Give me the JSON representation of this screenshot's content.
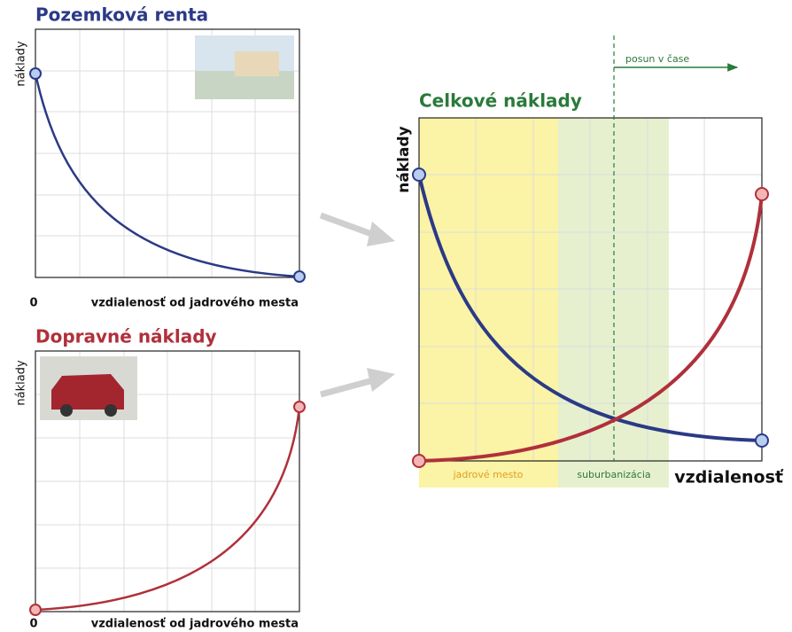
{
  "panels": [
    {
      "title": "Pozemková renta",
      "y_label": "náklady",
      "origin": "0",
      "x_label": "vzdialenosť od jadrového mesta"
    },
    {
      "title": "Dopravné náklady",
      "y_label": "náklady",
      "origin": "0",
      "x_label": "vzdialenosť od jadrového mesta"
    }
  ],
  "main": {
    "title": "Celkové náklady",
    "y_label": "náklady",
    "x_label": "vzdialenosť",
    "shift_label": "posun v čase",
    "zones": [
      "jadrové mesto",
      "suburbanizácia"
    ]
  }
}
